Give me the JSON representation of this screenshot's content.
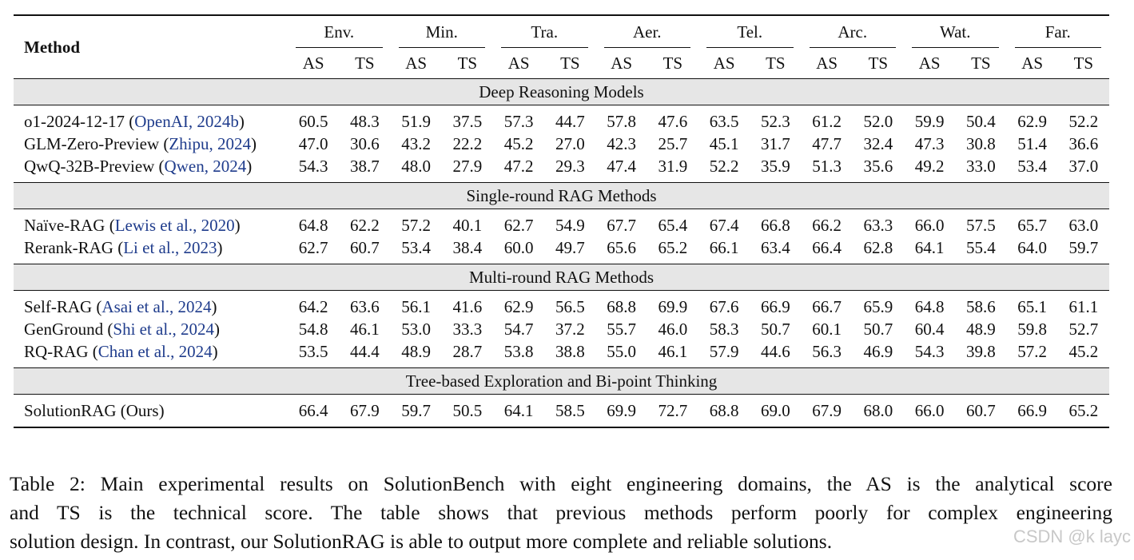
{
  "table": {
    "method_header": "Method",
    "domains": [
      "Env.",
      "Min.",
      "Tra.",
      "Aer.",
      "Tel.",
      "Arc.",
      "Wat.",
      "Far."
    ],
    "subheaders": [
      "AS",
      "TS"
    ],
    "sections": [
      {
        "title": "Deep Reasoning Models",
        "rows": [
          {
            "name": "o1-2024-12-17 (",
            "cite": "OpenAI, 2024b",
            "tail": ")",
            "values": [
              "60.5",
              "48.3",
              "51.9",
              "37.5",
              "57.3",
              "44.7",
              "57.8",
              "47.6",
              "63.5",
              "52.3",
              "61.2",
              "52.0",
              "59.9",
              "50.4",
              "62.9",
              "52.2"
            ]
          },
          {
            "name": "GLM-Zero-Preview (",
            "cite": "Zhipu, 2024",
            "tail": ")",
            "values": [
              "47.0",
              "30.6",
              "43.2",
              "22.2",
              "45.2",
              "27.0",
              "42.3",
              "25.7",
              "45.1",
              "31.7",
              "47.7",
              "32.4",
              "47.3",
              "30.8",
              "51.4",
              "36.6"
            ]
          },
          {
            "name": "QwQ-32B-Preview (",
            "cite": "Qwen, 2024",
            "tail": ")",
            "values": [
              "54.3",
              "38.7",
              "48.0",
              "27.9",
              "47.2",
              "29.3",
              "47.4",
              "31.9",
              "52.2",
              "35.9",
              "51.3",
              "35.6",
              "49.2",
              "33.0",
              "53.4",
              "37.0"
            ]
          }
        ]
      },
      {
        "title": "Single-round RAG Methods",
        "rows": [
          {
            "name": "Naïve-RAG (",
            "cite": "Lewis et al., 2020",
            "tail": ")",
            "values": [
              "64.8",
              "62.2",
              "57.2",
              "40.1",
              "62.7",
              "54.9",
              "67.7",
              "65.4",
              "67.4",
              "66.8",
              "66.2",
              "63.3",
              "66.0",
              "57.5",
              "65.7",
              "63.0"
            ],
            "bold": [
              12
            ]
          },
          {
            "name": "Rerank-RAG (",
            "cite": "Li et al., 2023",
            "tail": ")",
            "values": [
              "62.7",
              "60.7",
              "53.4",
              "38.4",
              "60.0",
              "49.7",
              "65.6",
              "65.2",
              "66.1",
              "63.4",
              "66.4",
              "62.8",
              "64.1",
              "55.4",
              "64.0",
              "59.7"
            ]
          }
        ]
      },
      {
        "title": "Multi-round RAG Methods",
        "rows": [
          {
            "name": "Self-RAG (",
            "cite": "Asai et al., 2024",
            "tail": ")",
            "values": [
              "64.2",
              "63.6",
              "56.1",
              "41.6",
              "62.9",
              "56.5",
              "68.8",
              "69.9",
              "67.6",
              "66.9",
              "66.7",
              "65.9",
              "64.8",
              "58.6",
              "65.1",
              "61.1"
            ]
          },
          {
            "name": "GenGround (",
            "cite": "Shi et al., 2024",
            "tail": ")",
            "values": [
              "54.8",
              "46.1",
              "53.0",
              "33.3",
              "54.7",
              "37.2",
              "55.7",
              "46.0",
              "58.3",
              "50.7",
              "60.1",
              "50.7",
              "60.4",
              "48.9",
              "59.8",
              "52.7"
            ]
          },
          {
            "name": "RQ-RAG (",
            "cite": "Chan et al., 2024",
            "tail": ")",
            "values": [
              "53.5",
              "44.4",
              "48.9",
              "28.7",
              "53.8",
              "38.8",
              "55.0",
              "46.1",
              "57.9",
              "44.6",
              "56.3",
              "46.9",
              "54.3",
              "39.8",
              "57.2",
              "45.2"
            ]
          }
        ]
      },
      {
        "title": "Tree-based Exploration and Bi-point Thinking",
        "rows": [
          {
            "name": "SolutionRAG (Ours)",
            "cite": "",
            "tail": "",
            "values": [
              "66.4",
              "67.9",
              "59.7",
              "50.5",
              "64.1",
              "58.5",
              "69.9",
              "72.7",
              "68.8",
              "69.0",
              "67.9",
              "68.0",
              "66.0",
              "60.7",
              "66.9",
              "65.2"
            ],
            "bold": [
              0,
              1,
              2,
              3,
              4,
              5,
              6,
              7,
              8,
              9,
              10,
              11,
              12,
              13,
              14,
              15
            ]
          }
        ]
      }
    ]
  },
  "caption": {
    "line1": "Table 2: Main experimental results on SolutionBench with eight engineering domains, the AS is the analytical score",
    "line2": "and TS is the technical score. The table shows that previous methods perform poorly for complex engineering",
    "line3": "solution design. In contrast, our SolutionRAG is able to output more complete and reliable solutions."
  },
  "watermark": "CSDN @k layc"
}
